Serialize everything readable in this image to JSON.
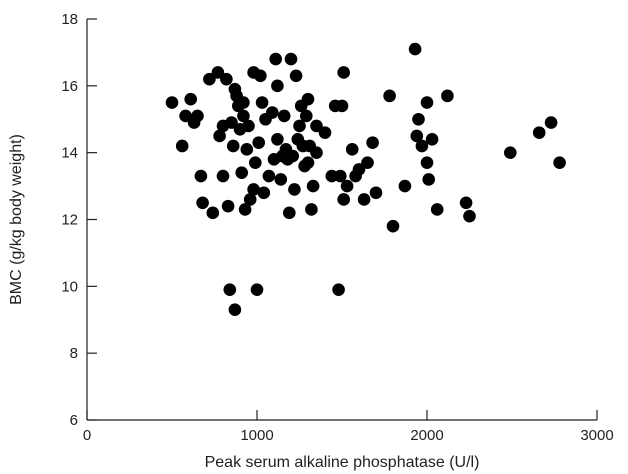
{
  "chart_data": {
    "type": "scatter",
    "title": "",
    "xlabel": "Peak serum alkaline phosphatase (U/l)",
    "ylabel": "BMC (g/kg body weight)",
    "xlim": [
      0,
      3000
    ],
    "ylim": [
      6,
      18
    ],
    "xticks": [
      0,
      1000,
      2000,
      3000
    ],
    "yticks": [
      6,
      8,
      10,
      12,
      14,
      16,
      18
    ],
    "grid": false,
    "legend": "none",
    "marker_color": "#000000",
    "axis_color": "#231f20",
    "series": [
      {
        "points": [
          [
            500,
            15.5
          ],
          [
            560,
            14.2
          ],
          [
            580,
            15.1
          ],
          [
            610,
            15.6
          ],
          [
            630,
            14.9
          ],
          [
            650,
            15.1
          ],
          [
            670,
            13.3
          ],
          [
            680,
            12.5
          ],
          [
            720,
            16.2
          ],
          [
            740,
            12.2
          ],
          [
            770,
            16.4
          ],
          [
            780,
            14.5
          ],
          [
            800,
            14.8
          ],
          [
            800,
            13.3
          ],
          [
            820,
            16.2
          ],
          [
            830,
            12.4
          ],
          [
            840,
            9.9
          ],
          [
            850,
            14.9
          ],
          [
            860,
            14.2
          ],
          [
            870,
            15.9
          ],
          [
            880,
            15.7
          ],
          [
            870,
            9.3
          ],
          [
            890,
            15.4
          ],
          [
            900,
            14.7
          ],
          [
            910,
            13.4
          ],
          [
            920,
            15.1
          ],
          [
            920,
            15.5
          ],
          [
            930,
            12.3
          ],
          [
            940,
            14.1
          ],
          [
            950,
            14.8
          ],
          [
            960,
            12.6
          ],
          [
            980,
            16.4
          ],
          [
            980,
            12.9
          ],
          [
            990,
            13.7
          ],
          [
            1000,
            9.9
          ],
          [
            1010,
            14.3
          ],
          [
            1020,
            16.3
          ],
          [
            1030,
            15.5
          ],
          [
            1040,
            12.8
          ],
          [
            1050,
            15.0
          ],
          [
            1070,
            13.3
          ],
          [
            1090,
            15.2
          ],
          [
            1100,
            13.8
          ],
          [
            1110,
            16.8
          ],
          [
            1120,
            14.4
          ],
          [
            1120,
            16.0
          ],
          [
            1140,
            13.2
          ],
          [
            1150,
            13.9
          ],
          [
            1160,
            15.1
          ],
          [
            1170,
            14.1
          ],
          [
            1180,
            13.8
          ],
          [
            1190,
            12.2
          ],
          [
            1200,
            16.8
          ],
          [
            1210,
            13.9
          ],
          [
            1220,
            12.9
          ],
          [
            1230,
            16.3
          ],
          [
            1240,
            14.4
          ],
          [
            1250,
            14.8
          ],
          [
            1260,
            15.4
          ],
          [
            1270,
            14.2
          ],
          [
            1280,
            13.6
          ],
          [
            1290,
            15.1
          ],
          [
            1300,
            15.6
          ],
          [
            1300,
            13.7
          ],
          [
            1310,
            14.2
          ],
          [
            1320,
            12.3
          ],
          [
            1330,
            13.0
          ],
          [
            1350,
            14.8
          ],
          [
            1350,
            14.0
          ],
          [
            1400,
            14.6
          ],
          [
            1440,
            13.3
          ],
          [
            1460,
            15.4
          ],
          [
            1480,
            9.9
          ],
          [
            1490,
            13.3
          ],
          [
            1500,
            15.4
          ],
          [
            1510,
            16.4
          ],
          [
            1510,
            12.6
          ],
          [
            1530,
            13.0
          ],
          [
            1560,
            14.1
          ],
          [
            1580,
            13.3
          ],
          [
            1600,
            13.5
          ],
          [
            1630,
            12.6
          ],
          [
            1650,
            13.7
          ],
          [
            1680,
            14.3
          ],
          [
            1700,
            12.8
          ],
          [
            1780,
            15.7
          ],
          [
            1800,
            11.8
          ],
          [
            1870,
            13.0
          ],
          [
            1930,
            17.1
          ],
          [
            1940,
            14.5
          ],
          [
            1950,
            15.0
          ],
          [
            1970,
            14.2
          ],
          [
            2000,
            15.5
          ],
          [
            2000,
            13.7
          ],
          [
            2010,
            13.2
          ],
          [
            2030,
            14.4
          ],
          [
            2060,
            12.3
          ],
          [
            2120,
            15.7
          ],
          [
            2230,
            12.5
          ],
          [
            2250,
            12.1
          ],
          [
            2490,
            14.0
          ],
          [
            2660,
            14.6
          ],
          [
            2730,
            14.9
          ],
          [
            2780,
            13.7
          ]
        ]
      }
    ]
  }
}
